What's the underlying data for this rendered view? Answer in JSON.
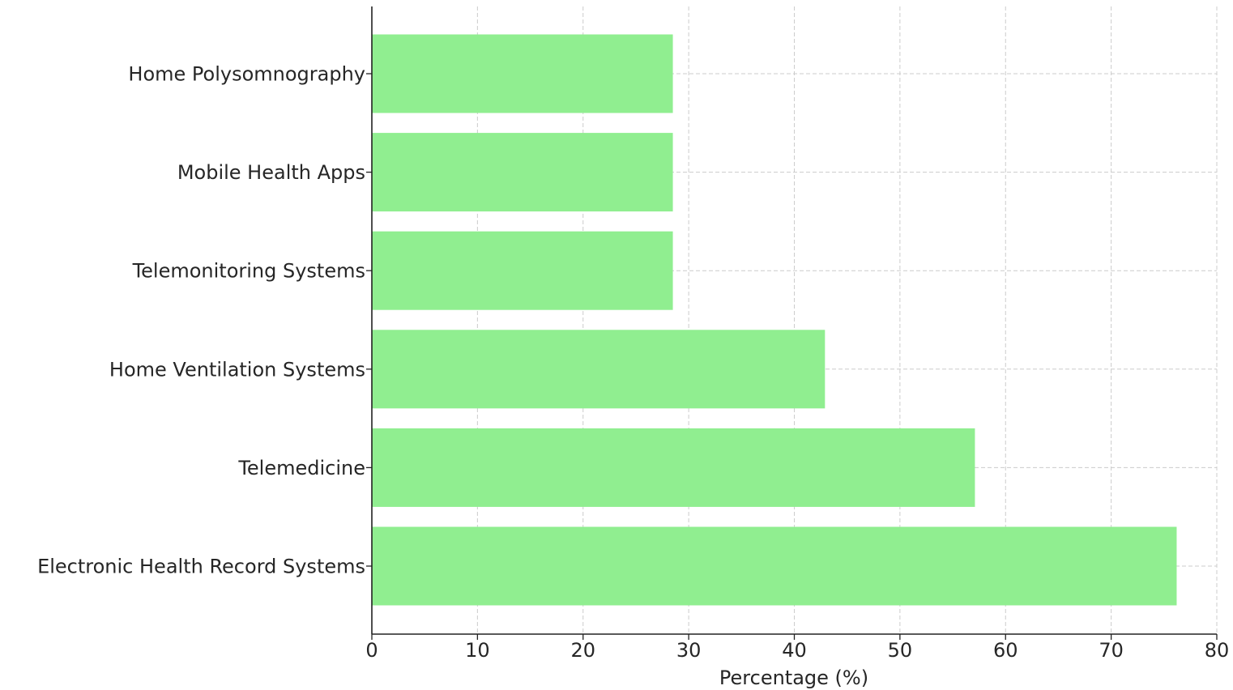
{
  "chart_data": {
    "type": "bar",
    "orientation": "horizontal",
    "categories": [
      "Home Polysomnography",
      "Mobile Health Apps",
      "Telemonitoring Systems",
      "Home Ventilation Systems",
      "Telemedicine",
      "Electronic Health Record Systems"
    ],
    "values": [
      28.5,
      28.5,
      28.5,
      42.9,
      57.1,
      76.2
    ],
    "xlabel": "Percentage (%)",
    "ylabel": "",
    "xlim": [
      0,
      80
    ],
    "xticks": [
      "0",
      "10",
      "20",
      "30",
      "40",
      "50",
      "60",
      "70",
      "80"
    ],
    "grid": true,
    "bar_color": "#90ee90"
  }
}
